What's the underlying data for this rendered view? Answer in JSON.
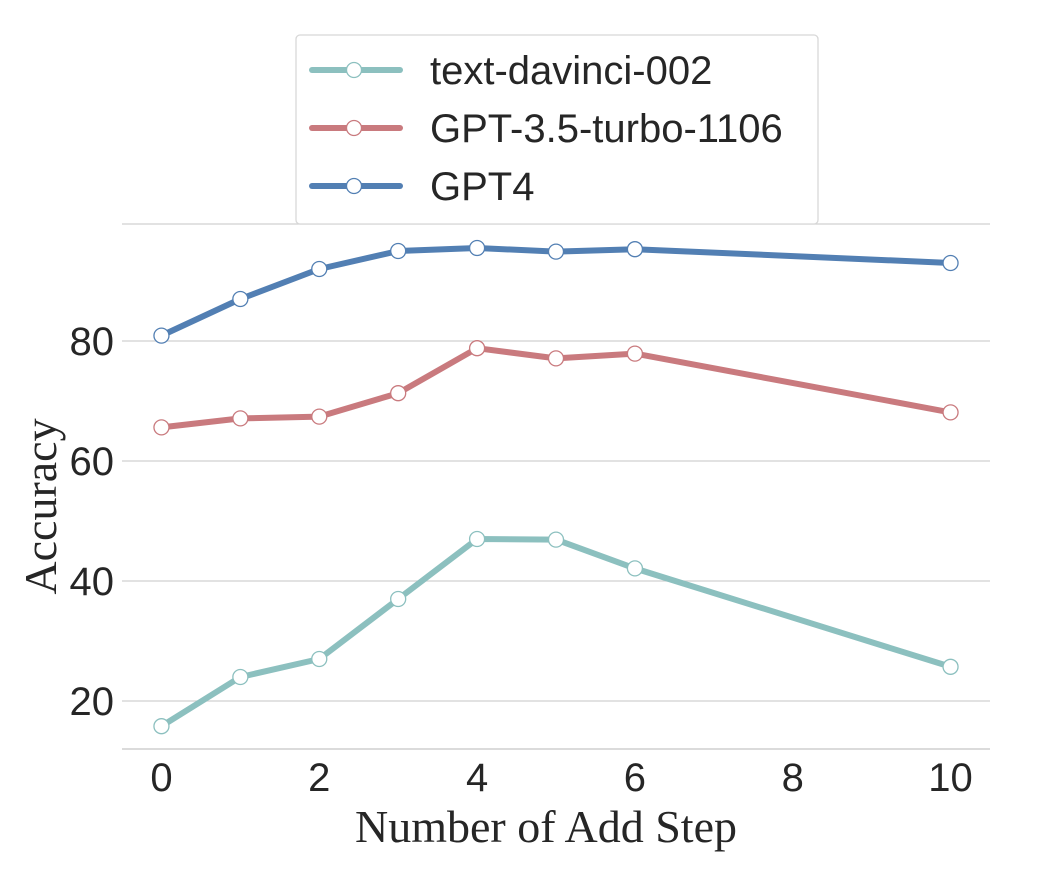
{
  "chart_data": {
    "type": "line",
    "title": "",
    "xlabel": "Number of Add Step",
    "ylabel": "Accuracy",
    "xlim": [
      -0.5,
      10.5
    ],
    "ylim": [
      12,
      99.5
    ],
    "xticks": [
      0,
      2,
      4,
      6,
      8,
      10
    ],
    "yticks": [
      20,
      40,
      60,
      80
    ],
    "grid": true,
    "legend_position": "top-center",
    "x": [
      0,
      1,
      2,
      3,
      4,
      5,
      6,
      10
    ],
    "series": [
      {
        "name": "text-davinci-002",
        "color": "#8cc0bf",
        "values": [
          15.8,
          24.0,
          27.0,
          37.0,
          47.0,
          46.9,
          42.1,
          25.7
        ]
      },
      {
        "name": "GPT-3.5-turbo-1106",
        "color": "#c97a7e",
        "values": [
          65.6,
          67.1,
          67.4,
          71.3,
          78.8,
          77.1,
          77.9,
          68.1
        ]
      },
      {
        "name": "GPT4",
        "color": "#527fb3",
        "values": [
          80.9,
          87.0,
          92.0,
          95.0,
          95.5,
          94.9,
          95.3,
          93.0
        ]
      }
    ]
  }
}
